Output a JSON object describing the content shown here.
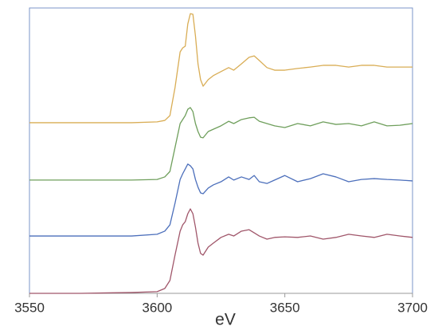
{
  "chart_data": {
    "type": "line",
    "x_label": "eV",
    "xlim": [
      3550,
      3700
    ],
    "xticks": [
      3550,
      3600,
      3650,
      3700
    ],
    "ylim": [
      0,
      10
    ],
    "x": [
      3550,
      3570,
      3590,
      3600,
      3603,
      3605,
      3607,
      3609,
      3610,
      3611,
      3612,
      3613,
      3614,
      3615,
      3616,
      3617,
      3618,
      3620,
      3622,
      3625,
      3628,
      3630,
      3633,
      3636,
      3638,
      3640,
      3643,
      3646,
      3650,
      3655,
      3660,
      3665,
      3670,
      3675,
      3680,
      3685,
      3690,
      3695,
      3700
    ],
    "series": [
      {
        "color": "#d9ad55",
        "values": [
          5.98,
          5.98,
          5.98,
          6.01,
          6.06,
          6.23,
          7.21,
          8.46,
          8.6,
          8.66,
          9.44,
          9.8,
          9.78,
          9.02,
          8.04,
          7.49,
          7.26,
          7.49,
          7.63,
          7.77,
          7.91,
          7.82,
          8.04,
          8.27,
          8.32,
          8.16,
          7.91,
          7.82,
          7.82,
          7.88,
          7.93,
          7.99,
          7.99,
          7.93,
          7.99,
          7.99,
          7.93,
          7.93,
          7.93
        ]
      },
      {
        "color": "#6f9f5c",
        "values": [
          3.97,
          3.97,
          3.97,
          3.99,
          4.08,
          4.27,
          5.11,
          5.95,
          6.09,
          6.23,
          6.45,
          6.51,
          6.37,
          5.95,
          5.67,
          5.47,
          5.45,
          5.67,
          5.75,
          5.87,
          6.03,
          5.95,
          6.09,
          6.15,
          6.17,
          6.03,
          5.95,
          5.87,
          5.81,
          5.95,
          5.87,
          6.01,
          5.92,
          5.95,
          5.87,
          6.01,
          5.87,
          5.89,
          5.95
        ]
      },
      {
        "color": "#4c6fbb",
        "values": [
          2.01,
          2.01,
          2.01,
          2.07,
          2.18,
          2.4,
          3.16,
          3.99,
          4.19,
          4.36,
          4.53,
          4.47,
          4.36,
          3.99,
          3.72,
          3.52,
          3.49,
          3.69,
          3.8,
          3.91,
          4.08,
          3.97,
          4.08,
          3.99,
          4.13,
          3.91,
          3.85,
          3.97,
          4.13,
          3.91,
          4.02,
          4.19,
          4.08,
          3.91,
          3.99,
          4.02,
          3.99,
          3.97,
          3.94
        ]
      },
      {
        "color": "#a0566a",
        "values": [
          0,
          0,
          0.03,
          0.06,
          0.17,
          0.45,
          1.34,
          2.18,
          2.4,
          2.51,
          2.79,
          2.96,
          2.79,
          2.32,
          1.76,
          1.4,
          1.34,
          1.62,
          1.76,
          1.96,
          2.07,
          2.01,
          2.18,
          2.23,
          2.12,
          2.01,
          1.9,
          1.96,
          1.98,
          1.96,
          2.01,
          1.9,
          1.96,
          2.07,
          2.01,
          1.96,
          2.07,
          2.01,
          1.96
        ]
      }
    ]
  }
}
